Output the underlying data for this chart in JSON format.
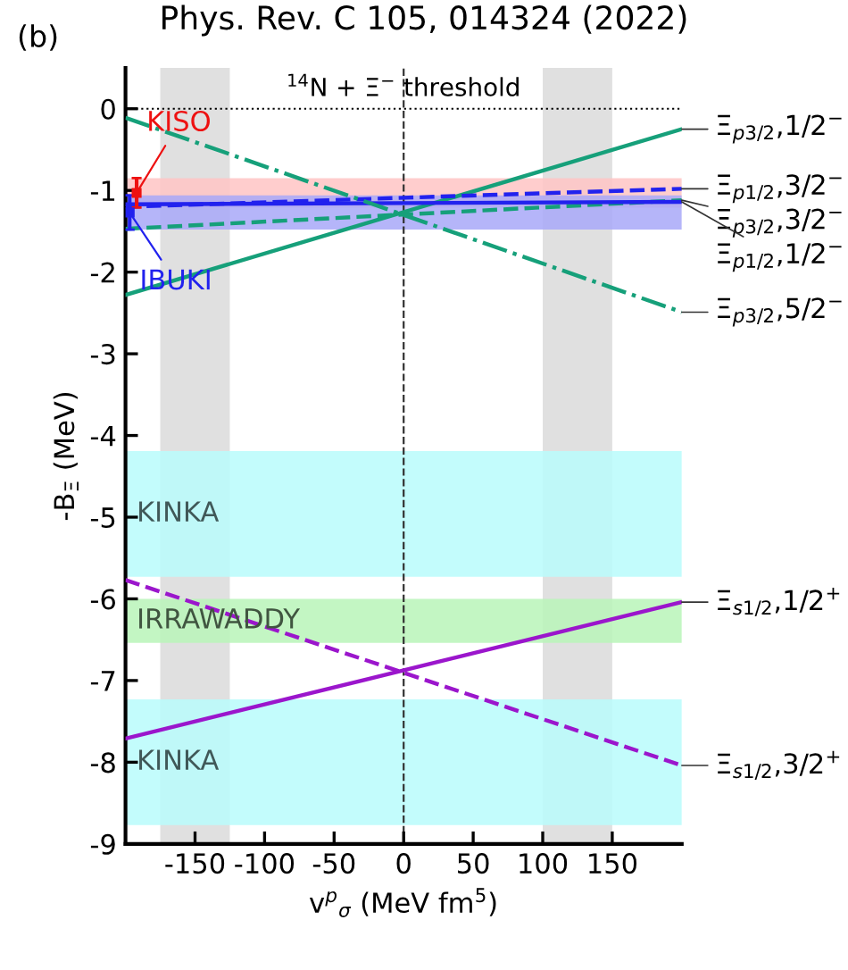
{
  "chart_data": {
    "type": "line",
    "title": "Phys. Rev. C 105, 014324 (2022)",
    "xlabel": "v$^{p}$$_{σ}$ (MeV fm$^{5}$)",
    "ylabel": "-B$_{Ξ}$ (MeV)",
    "annotations": [
      "(b)"
    ],
    "xlim": [
      -200,
      200
    ],
    "ylim": [
      -9,
      0.5
    ],
    "xticks": [
      -150,
      -100,
      -50,
      0,
      50,
      100,
      150
    ],
    "yticks": [
      -9,
      -8,
      -7,
      -6,
      -5,
      -4,
      -3,
      -2,
      -1,
      0
    ],
    "grid": false,
    "legend": false,
    "ref_lines": [
      {
        "axis": "y",
        "value": 0,
        "label": "$^{14}$N + Ξ$^{−}$ threshold",
        "line_style": "dotted",
        "color": "#000000"
      },
      {
        "axis": "x",
        "value": 0,
        "line_style": "dashed",
        "color": "#333333"
      }
    ],
    "bands": [
      {
        "axis": "x",
        "from": -175,
        "to": -125,
        "color": "#e0e0e0"
      },
      {
        "axis": "x",
        "from": 100,
        "to": 150,
        "color": "#e0e0e0"
      },
      {
        "axis": "y",
        "from": -1.21,
        "to": -0.85,
        "color": "#ffc4c4"
      },
      {
        "axis": "y",
        "from": -1.48,
        "to": -1.06,
        "color": "#a8a8f8"
      },
      {
        "axis": "y",
        "from": -5.73,
        "to": -4.19,
        "label": "KINKA",
        "color": "#b8fcfc"
      },
      {
        "axis": "y",
        "from": -6.54,
        "to": -6.0,
        "label": "IRRAWADDY",
        "color": "#b8f4b8"
      },
      {
        "axis": "y",
        "from": -8.77,
        "to": -7.23,
        "label": "KINKA",
        "color": "#b8fcfc"
      }
    ],
    "series": [
      {
        "name": "Ξ$_{p3/2}$,1/2$^{−}$",
        "color": "#16a07a",
        "x": [
          -200,
          200
        ],
        "values": [
          -2.28,
          -0.25
        ],
        "line_style": "solid"
      },
      {
        "name": "Ξ$_{p1/2}$,3/2$^{−}$",
        "color": "#2222ee",
        "x": [
          -200,
          200
        ],
        "values": [
          -1.2,
          -0.98
        ],
        "line_style": "dashed"
      },
      {
        "name": "Ξ$_{p3/2}$,3/2$^{−}$",
        "color": "#16a07a",
        "x": [
          -200,
          200
        ],
        "values": [
          -1.47,
          -1.12
        ],
        "line_style": "dashed"
      },
      {
        "name": "Ξ$_{p1/2}$,1/2$^{−}$",
        "color": "#2222ee",
        "x": [
          -200,
          200
        ],
        "values": [
          -1.17,
          -1.14
        ],
        "line_style": "solid"
      },
      {
        "name": "Ξ$_{p3/2}$,5/2$^{−}$",
        "color": "#16a07a",
        "x": [
          -200,
          200
        ],
        "values": [
          -0.11,
          -2.49
        ],
        "line_style": "dashdot"
      },
      {
        "name": "Ξ$_{s1/2}$,1/2$^{+}$",
        "color": "#9b16cc",
        "x": [
          -200,
          200
        ],
        "values": [
          -7.71,
          -6.04
        ],
        "line_style": "solid"
      },
      {
        "name": "Ξ$_{s1/2}$,3/2$^{+}$",
        "color": "#9b16cc",
        "x": [
          -200,
          200
        ],
        "values": [
          -5.77,
          -8.04
        ],
        "line_style": "dashed"
      },
      {
        "name": "KISO",
        "type": "scatter",
        "marker": "square",
        "color": "#ee1111",
        "x": [
          -192
        ],
        "values": [
          -1.03
        ],
        "errors": [
          0.18
        ]
      },
      {
        "name": "IBUKI",
        "type": "scatter",
        "marker": "square",
        "color": "#2222ee",
        "x": [
          -197
        ],
        "values": [
          -1.27
        ],
        "errors": [
          0.21
        ]
      }
    ]
  }
}
